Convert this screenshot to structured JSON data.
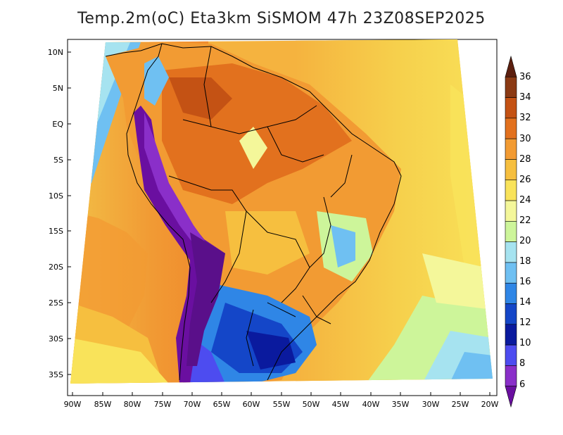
{
  "title": "Temp.2m(oC) Eta3km SiSMOM 47h 23Z08SEP2025",
  "lat_labels": [
    "10N",
    "5N",
    "EQ",
    "5S",
    "10S",
    "15S",
    "20S",
    "25S",
    "30S",
    "35S"
  ],
  "lon_labels": [
    "90W",
    "85W",
    "80W",
    "75W",
    "70W",
    "65W",
    "60W",
    "55W",
    "50W",
    "45W",
    "40W",
    "35W",
    "30W",
    "25W",
    "20W"
  ],
  "colorbar": {
    "labels": [
      "36",
      "34",
      "32",
      "30",
      "28",
      "26",
      "24",
      "22",
      "20",
      "18",
      "16",
      "14",
      "12",
      "10",
      "8",
      "6"
    ],
    "colors": [
      "#5c1f0f",
      "#8b3a14",
      "#c45214",
      "#e2711e",
      "#f29b33",
      "#f6bf3f",
      "#f9e35a",
      "#f4f79a",
      "#cdf59a",
      "#a6e3f0",
      "#6fc0f2",
      "#2f86e6",
      "#1446c8",
      "#0a1a9e",
      "#4d4cf0",
      "#8a2fc9",
      "#6a0fa0"
    ]
  }
}
